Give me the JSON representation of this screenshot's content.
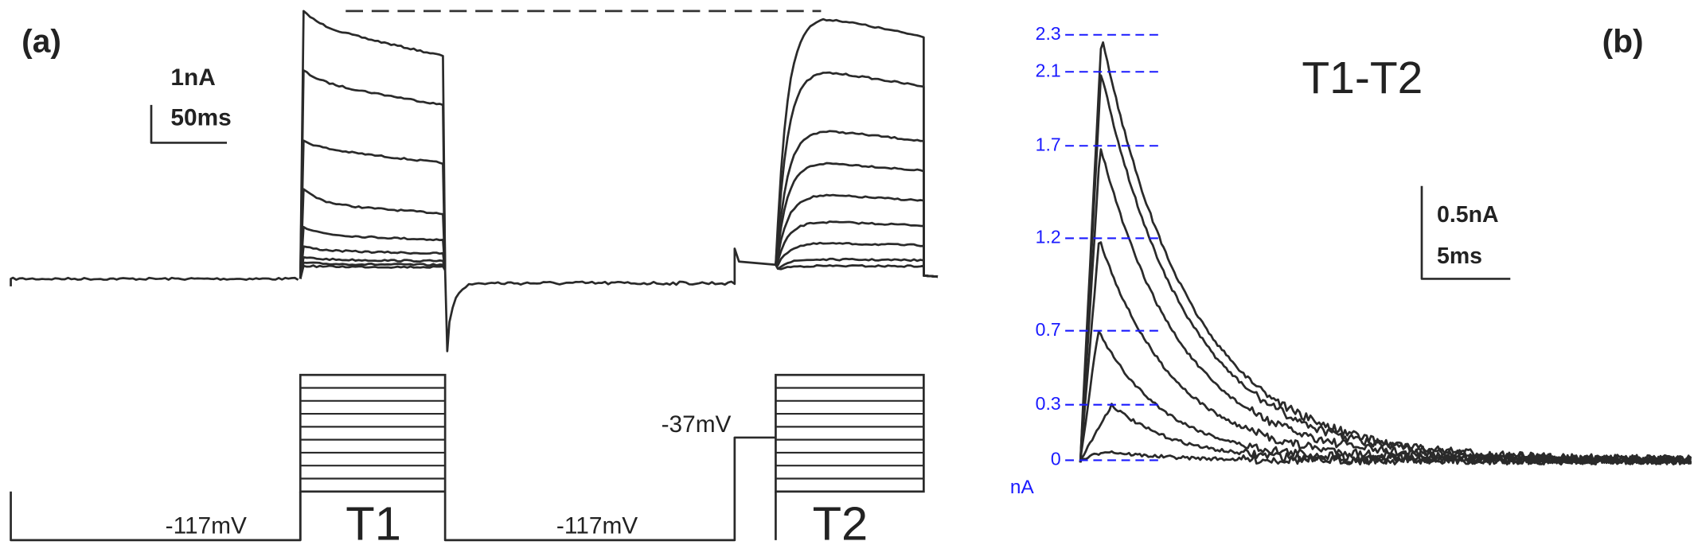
{
  "panel_a": {
    "label": "(a)",
    "scale_bar": {
      "current": "1nA",
      "time": "50ms"
    },
    "voltage_labels": [
      "-117mV",
      "-117mV",
      "-37mV"
    ],
    "step_labels": [
      "T1",
      "T2"
    ]
  },
  "panel_b": {
    "label": "(b)",
    "title": "T1-T2",
    "scale_bar": {
      "current": "0.5nA",
      "time": "5ms"
    },
    "y_unit": "nA",
    "peak_ticks": [
      0,
      0.3,
      0.7,
      1.2,
      1.7,
      2.1,
      2.3
    ]
  }
}
